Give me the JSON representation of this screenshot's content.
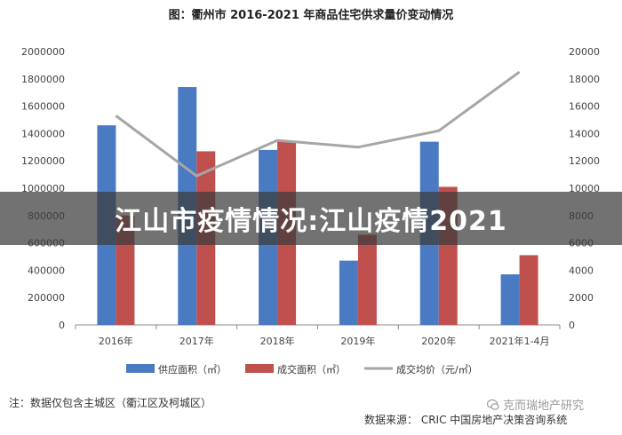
{
  "chart_data": {
    "type": "bar",
    "title": "图：衢州市 2016-2021 年商品住宅供求量价变动情况",
    "categories": [
      "2016年",
      "2017年",
      "2018年",
      "2019年",
      "2020年",
      "2021年1-4月"
    ],
    "series": [
      {
        "name": "供应面积（㎡）",
        "kind": "bar",
        "axis": "left",
        "color": "#4a7bc2",
        "values": [
          1460000,
          1740000,
          1280000,
          470000,
          1340000,
          370000
        ]
      },
      {
        "name": "成交面积（㎡）",
        "kind": "bar",
        "axis": "left",
        "color": "#c0504d",
        "values": [
          800000,
          1270000,
          1340000,
          660000,
          1010000,
          510000
        ]
      },
      {
        "name": "成交均价（元/㎡）",
        "kind": "line",
        "axis": "right",
        "color": "#a6a6a6",
        "values": [
          15300,
          10900,
          13500,
          13000,
          14200,
          18500
        ]
      }
    ],
    "left_axis": {
      "ylim": [
        0,
        2000000
      ],
      "ticks": [
        "0",
        "200000",
        "400000",
        "600000",
        "800000",
        "1000000",
        "1200000",
        "1400000",
        "1600000",
        "1800000",
        "2000000"
      ]
    },
    "right_axis": {
      "ylim": [
        0,
        20000
      ],
      "ticks": [
        "0",
        "2000",
        "4000",
        "6000",
        "8000",
        "10000",
        "12000",
        "14000",
        "16000",
        "18000",
        "20000"
      ]
    },
    "legend_position": "bottom",
    "grid": false
  },
  "labels": {
    "note": "注：数据仅包含主城区（衢江区及柯城区）",
    "source": "数据来源：  CRIC 中国房地产决策咨询系统",
    "watermark": "克而瑞地产研究",
    "overlay_title": "江山市疫情情况:江山疫情2021"
  },
  "colors": {
    "banner_bg": "#3c3c3c",
    "axis": "#888888"
  }
}
